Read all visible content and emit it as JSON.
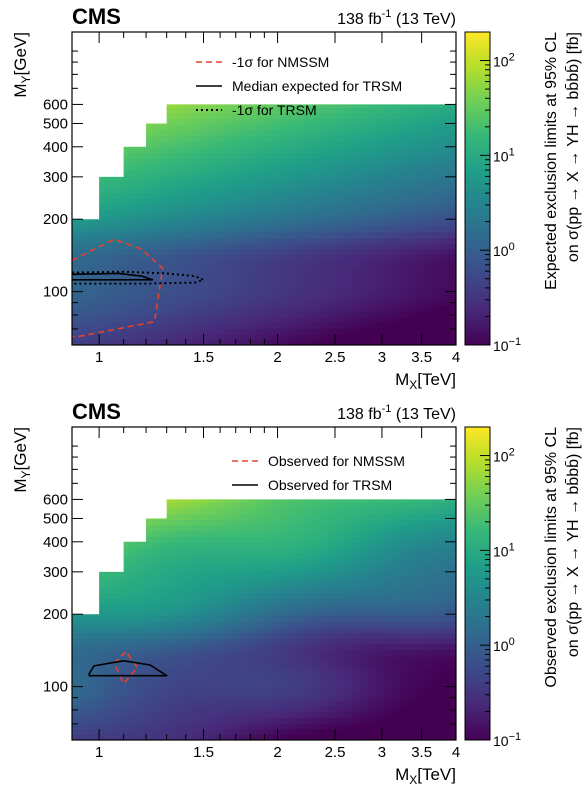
{
  "chart_data": [
    {
      "type": "heatmap",
      "experiment": "CMS",
      "lumi": "138 fb",
      "lumi_exp": "-1",
      "energy": "(13 TeV)",
      "xlabel": "M",
      "xlabel_sub": "X",
      "xlabel_unit": "[TeV]",
      "ylabel": "M",
      "ylabel_sub": "Y",
      "ylabel_unit": "[GeV]",
      "zlabel_line1": "Expected exclusion limits at 95% CL",
      "zlabel_line2": "on σ(pp → X → YH → bb̄bb̄) [fb]",
      "x_scale": "log",
      "y_scale": "log",
      "xlim": [
        0.9,
        4.0
      ],
      "ylim": [
        60,
        1200
      ],
      "zlim": [
        0.1,
        200
      ],
      "x_ticks": [
        "1",
        "1.5",
        "2",
        "2.5",
        "3",
        "3.5",
        "4"
      ],
      "y_ticks": [
        "100",
        "200",
        "300",
        "400",
        "500",
        "600"
      ],
      "z_ticks": [
        {
          "base": "10",
          "exp": "2",
          "value": 100
        },
        {
          "base": "10",
          "exp": "1",
          "value": 10
        },
        {
          "base": "10",
          "exp": "0",
          "value": 1
        },
        {
          "base": "10",
          "exp": "−1",
          "value": 0.1
        }
      ],
      "upper_boundary": [
        {
          "mx": 1.0,
          "my_max": 200
        },
        {
          "mx": 1.1,
          "my_max": 300
        },
        {
          "mx": 1.2,
          "my_max": 400
        },
        {
          "mx": 1.3,
          "my_max": 500
        },
        {
          "mx": 1.4,
          "my_max": 600
        },
        {
          "mx": 4.0,
          "my_max": 600
        }
      ],
      "legend": [
        {
          "label": "-1σ for NMSSM",
          "color": "#e8412b",
          "style": "dashed"
        },
        {
          "label": "Median expected for TRSM",
          "color": "#000000",
          "style": "solid"
        },
        {
          "label": "-1σ for TRSM",
          "color": "#000000",
          "style": "dotted"
        }
      ],
      "legend_position": "top-center",
      "contours": [
        {
          "name": "-1σ for NMSSM",
          "color": "#e8412b",
          "style": "dashed",
          "points": [
            [
              0.9,
              135
            ],
            [
              1.06,
              165
            ],
            [
              1.18,
              150
            ],
            [
              1.28,
              125
            ],
            [
              1.24,
              75
            ],
            [
              0.92,
              65
            ],
            [
              0.9,
              65
            ]
          ]
        },
        {
          "name": "Median expected for TRSM",
          "color": "#000000",
          "style": "solid",
          "points": [
            [
              0.9,
              118
            ],
            [
              1.08,
              119
            ],
            [
              1.18,
              116
            ],
            [
              1.23,
              112
            ],
            [
              0.9,
              112
            ]
          ]
        },
        {
          "name": "-1σ for TRSM",
          "color": "#000000",
          "style": "dotted",
          "points": [
            [
              0.9,
              120
            ],
            [
              1.1,
              121
            ],
            [
              1.3,
              119
            ],
            [
              1.45,
              116
            ],
            [
              1.5,
              112
            ],
            [
              1.45,
              109
            ],
            [
              1.2,
              108
            ],
            [
              0.9,
              108
            ]
          ]
        }
      ]
    },
    {
      "type": "heatmap",
      "experiment": "CMS",
      "lumi": "138 fb",
      "lumi_exp": "-1",
      "energy": "(13 TeV)",
      "xlabel": "M",
      "xlabel_sub": "X",
      "xlabel_unit": "[TeV]",
      "ylabel": "M",
      "ylabel_sub": "Y",
      "ylabel_unit": "[GeV]",
      "zlabel_line1": "Observed exclusion limits at 95% CL",
      "zlabel_line2": "on σ(pp → X → YH → bb̄bb̄) [fb]",
      "x_scale": "log",
      "y_scale": "log",
      "xlim": [
        0.9,
        4.0
      ],
      "ylim": [
        60,
        1200
      ],
      "zlim": [
        0.1,
        200
      ],
      "x_ticks": [
        "1",
        "1.5",
        "2",
        "2.5",
        "3",
        "3.5",
        "4"
      ],
      "y_ticks": [
        "100",
        "200",
        "300",
        "400",
        "500",
        "600"
      ],
      "z_ticks": [
        {
          "base": "10",
          "exp": "2",
          "value": 100
        },
        {
          "base": "10",
          "exp": "1",
          "value": 10
        },
        {
          "base": "10",
          "exp": "0",
          "value": 1
        },
        {
          "base": "10",
          "exp": "−1",
          "value": 0.1
        }
      ],
      "upper_boundary": [
        {
          "mx": 1.0,
          "my_max": 200
        },
        {
          "mx": 1.1,
          "my_max": 300
        },
        {
          "mx": 1.2,
          "my_max": 400
        },
        {
          "mx": 1.3,
          "my_max": 500
        },
        {
          "mx": 1.4,
          "my_max": 600
        },
        {
          "mx": 4.0,
          "my_max": 600
        }
      ],
      "legend": [
        {
          "label": "Observed for NMSSM",
          "color": "#e8412b",
          "style": "dashed"
        },
        {
          "label": "Observed for TRSM",
          "color": "#000000",
          "style": "solid"
        }
      ],
      "legend_position": "top-right",
      "contours": [
        {
          "name": "Observed for NMSSM",
          "color": "#e8412b",
          "style": "dashed",
          "points": [
            [
              1.06,
              125
            ],
            [
              1.11,
              140
            ],
            [
              1.16,
              120
            ],
            [
              1.1,
              103
            ],
            [
              1.06,
              125
            ]
          ]
        },
        {
          "name": "Observed for TRSM",
          "color": "#000000",
          "style": "solid",
          "points": [
            [
              0.96,
              112
            ],
            [
              0.98,
              122
            ],
            [
              1.1,
              128
            ],
            [
              1.22,
              123
            ],
            [
              1.3,
              111
            ],
            [
              0.96,
              111
            ]
          ]
        }
      ]
    }
  ]
}
